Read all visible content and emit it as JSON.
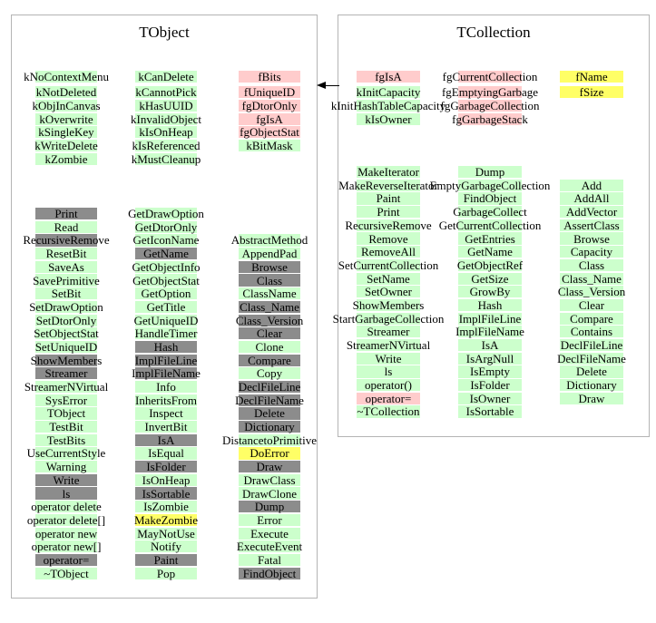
{
  "colors": {
    "method_public": "#ccffcc",
    "data_member": "#ffcccc",
    "overridden": "#8c8c8c",
    "highlight": "#ffff66",
    "box_border": "#b4b4b4",
    "arrow": "#000000"
  },
  "icons": {
    "inheritance_arrow": "left-pointing-filled-triangle"
  },
  "classes": [
    {
      "name": "TObject",
      "top_columns": [
        {
          "items": [
            {
              "label": "kNoContextMenu",
              "type": "green"
            },
            {
              "label": "kNotDeleted",
              "type": "green"
            },
            {
              "label": "kObjInCanvas",
              "type": "green"
            },
            {
              "label": "kOverwrite",
              "type": "green"
            },
            {
              "label": "kSingleKey",
              "type": "green"
            },
            {
              "label": "kWriteDelete",
              "type": "green"
            },
            {
              "label": "kZombie",
              "type": "green"
            }
          ]
        },
        {
          "items": [
            {
              "label": "kCanDelete",
              "type": "green"
            },
            {
              "label": "kCannotPick",
              "type": "green"
            },
            {
              "label": "kHasUUID",
              "type": "green"
            },
            {
              "label": "kInvalidObject",
              "type": "green"
            },
            {
              "label": "kIsOnHeap",
              "type": "green"
            },
            {
              "label": "kIsReferenced",
              "type": "green"
            },
            {
              "label": "kMustCleanup",
              "type": "green"
            }
          ]
        },
        {
          "items": [
            {
              "label": "fBits",
              "type": "pink"
            },
            {
              "label": "fUniqueID",
              "type": "pink"
            },
            {
              "label": "fgDtorOnly",
              "type": "pink"
            },
            {
              "label": "fgIsA",
              "type": "pink"
            },
            {
              "label": "fgObjectStat",
              "type": "pink"
            },
            {
              "label": "kBitMask",
              "type": "green"
            }
          ]
        }
      ],
      "method_columns": [
        {
          "items": [
            {
              "label": "Print",
              "type": "gray"
            },
            {
              "label": "Read",
              "type": "green"
            },
            {
              "label": "RecursiveRemove",
              "type": "gray"
            },
            {
              "label": "ResetBit",
              "type": "green"
            },
            {
              "label": "SaveAs",
              "type": "green"
            },
            {
              "label": "SavePrimitive",
              "type": "green"
            },
            {
              "label": "SetBit",
              "type": "green"
            },
            {
              "label": "SetDrawOption",
              "type": "green"
            },
            {
              "label": "SetDtorOnly",
              "type": "green"
            },
            {
              "label": "SetObjectStat",
              "type": "green"
            },
            {
              "label": "SetUniqueID",
              "type": "green"
            },
            {
              "label": "ShowMembers",
              "type": "gray"
            },
            {
              "label": "Streamer",
              "type": "gray"
            },
            {
              "label": "StreamerNVirtual",
              "type": "green"
            },
            {
              "label": "SysError",
              "type": "green"
            },
            {
              "label": "TObject",
              "type": "green"
            },
            {
              "label": "TestBit",
              "type": "green"
            },
            {
              "label": "TestBits",
              "type": "green"
            },
            {
              "label": "UseCurrentStyle",
              "type": "green"
            },
            {
              "label": "Warning",
              "type": "green"
            },
            {
              "label": "Write",
              "type": "gray"
            },
            {
              "label": "ls",
              "type": "gray"
            },
            {
              "label": "operator delete",
              "type": "green"
            },
            {
              "label": "operator delete[]",
              "type": "green"
            },
            {
              "label": "operator new",
              "type": "green"
            },
            {
              "label": "operator new[]",
              "type": "green"
            },
            {
              "label": "operator=",
              "type": "gray"
            },
            {
              "label": "~TObject",
              "type": "green"
            }
          ]
        },
        {
          "items": [
            {
              "label": "GetDrawOption",
              "type": "green"
            },
            {
              "label": "GetDtorOnly",
              "type": "green"
            },
            {
              "label": "GetIconName",
              "type": "green"
            },
            {
              "label": "GetName",
              "type": "gray"
            },
            {
              "label": "GetObjectInfo",
              "type": "green"
            },
            {
              "label": "GetObjectStat",
              "type": "green"
            },
            {
              "label": "GetOption",
              "type": "green"
            },
            {
              "label": "GetTitle",
              "type": "green"
            },
            {
              "label": "GetUniqueID",
              "type": "green"
            },
            {
              "label": "HandleTimer",
              "type": "green"
            },
            {
              "label": "Hash",
              "type": "gray"
            },
            {
              "label": "ImplFileLine",
              "type": "gray"
            },
            {
              "label": "ImplFileName",
              "type": "gray"
            },
            {
              "label": "Info",
              "type": "green"
            },
            {
              "label": "InheritsFrom",
              "type": "green"
            },
            {
              "label": "Inspect",
              "type": "green"
            },
            {
              "label": "InvertBit",
              "type": "green"
            },
            {
              "label": "IsA",
              "type": "gray"
            },
            {
              "label": "IsEqual",
              "type": "green"
            },
            {
              "label": "IsFolder",
              "type": "gray"
            },
            {
              "label": "IsOnHeap",
              "type": "green"
            },
            {
              "label": "IsSortable",
              "type": "gray"
            },
            {
              "label": "IsZombie",
              "type": "green"
            },
            {
              "label": "MakeZombie",
              "type": "yellow"
            },
            {
              "label": "MayNotUse",
              "type": "green"
            },
            {
              "label": "Notify",
              "type": "green"
            },
            {
              "label": "Paint",
              "type": "gray"
            },
            {
              "label": "Pop",
              "type": "green"
            }
          ]
        },
        {
          "items": [
            {
              "label": "AbstractMethod",
              "type": "green"
            },
            {
              "label": "AppendPad",
              "type": "green"
            },
            {
              "label": "Browse",
              "type": "gray"
            },
            {
              "label": "Class",
              "type": "gray"
            },
            {
              "label": "ClassName",
              "type": "green"
            },
            {
              "label": "Class_Name",
              "type": "gray"
            },
            {
              "label": "Class_Version",
              "type": "gray"
            },
            {
              "label": "Clear",
              "type": "gray"
            },
            {
              "label": "Clone",
              "type": "green"
            },
            {
              "label": "Compare",
              "type": "gray"
            },
            {
              "label": "Copy",
              "type": "green"
            },
            {
              "label": "DeclFileLine",
              "type": "gray"
            },
            {
              "label": "DeclFileName",
              "type": "gray"
            },
            {
              "label": "Delete",
              "type": "gray"
            },
            {
              "label": "Dictionary",
              "type": "gray"
            },
            {
              "label": "DistancetoPrimitive",
              "type": "green"
            },
            {
              "label": "DoError",
              "type": "yellow"
            },
            {
              "label": "Draw",
              "type": "gray"
            },
            {
              "label": "DrawClass",
              "type": "green"
            },
            {
              "label": "DrawClone",
              "type": "green"
            },
            {
              "label": "Dump",
              "type": "gray"
            },
            {
              "label": "Error",
              "type": "green"
            },
            {
              "label": "Execute",
              "type": "green"
            },
            {
              "label": "ExecuteEvent",
              "type": "green"
            },
            {
              "label": "Fatal",
              "type": "green"
            },
            {
              "label": "FindObject",
              "type": "gray"
            }
          ]
        }
      ]
    },
    {
      "name": "TCollection",
      "top_columns": [
        {
          "items": [
            {
              "label": "fgIsA",
              "type": "pink"
            },
            {
              "label": "kInitCapacity",
              "type": "green"
            },
            {
              "label": "kInitHashTableCapacity",
              "type": "green"
            },
            {
              "label": "kIsOwner",
              "type": "green"
            }
          ]
        },
        {
          "items": [
            {
              "label": "fgCurrentCollection",
              "type": "pink"
            },
            {
              "label": "fgEmptyingGarbage",
              "type": "pink"
            },
            {
              "label": "fgGarbageCollection",
              "type": "pink"
            },
            {
              "label": "fgGarbageStack",
              "type": "pink"
            }
          ]
        },
        {
          "items": [
            {
              "label": "fName",
              "type": "yellow"
            },
            {
              "label": "fSize",
              "type": "yellow"
            }
          ]
        }
      ],
      "method_columns": [
        {
          "items": [
            {
              "label": "MakeIterator",
              "type": "green"
            },
            {
              "label": "MakeReverseIterator",
              "type": "green"
            },
            {
              "label": "Paint",
              "type": "green"
            },
            {
              "label": "Print",
              "type": "green"
            },
            {
              "label": "RecursiveRemove",
              "type": "green"
            },
            {
              "label": "Remove",
              "type": "green"
            },
            {
              "label": "RemoveAll",
              "type": "green"
            },
            {
              "label": "SetCurrentCollection",
              "type": "green"
            },
            {
              "label": "SetName",
              "type": "green"
            },
            {
              "label": "SetOwner",
              "type": "green"
            },
            {
              "label": "ShowMembers",
              "type": "green"
            },
            {
              "label": "StartGarbageCollection",
              "type": "green"
            },
            {
              "label": "Streamer",
              "type": "green"
            },
            {
              "label": "StreamerNVirtual",
              "type": "green"
            },
            {
              "label": "Write",
              "type": "green"
            },
            {
              "label": "ls",
              "type": "green"
            },
            {
              "label": "operator()",
              "type": "green"
            },
            {
              "label": "operator=",
              "type": "pink"
            },
            {
              "label": "~TCollection",
              "type": "green"
            }
          ]
        },
        {
          "items": [
            {
              "label": "Dump",
              "type": "green"
            },
            {
              "label": "EmptyGarbageCollection",
              "type": "green"
            },
            {
              "label": "FindObject",
              "type": "green"
            },
            {
              "label": "GarbageCollect",
              "type": "green"
            },
            {
              "label": "GetCurrentCollection",
              "type": "green"
            },
            {
              "label": "GetEntries",
              "type": "green"
            },
            {
              "label": "GetName",
              "type": "green"
            },
            {
              "label": "GetObjectRef",
              "type": "green"
            },
            {
              "label": "GetSize",
              "type": "green"
            },
            {
              "label": "GrowBy",
              "type": "green"
            },
            {
              "label": "Hash",
              "type": "green"
            },
            {
              "label": "ImplFileLine",
              "type": "green"
            },
            {
              "label": "ImplFileName",
              "type": "green"
            },
            {
              "label": "IsA",
              "type": "green"
            },
            {
              "label": "IsArgNull",
              "type": "green"
            },
            {
              "label": "IsEmpty",
              "type": "green"
            },
            {
              "label": "IsFolder",
              "type": "green"
            },
            {
              "label": "IsOwner",
              "type": "green"
            },
            {
              "label": "IsSortable",
              "type": "green"
            }
          ]
        },
        {
          "items": [
            {
              "label": "Add",
              "type": "green"
            },
            {
              "label": "AddAll",
              "type": "green"
            },
            {
              "label": "AddVector",
              "type": "green"
            },
            {
              "label": "AssertClass",
              "type": "green"
            },
            {
              "label": "Browse",
              "type": "green"
            },
            {
              "label": "Capacity",
              "type": "green"
            },
            {
              "label": "Class",
              "type": "green"
            },
            {
              "label": "Class_Name",
              "type": "green"
            },
            {
              "label": "Class_Version",
              "type": "green"
            },
            {
              "label": "Clear",
              "type": "green"
            },
            {
              "label": "Compare",
              "type": "green"
            },
            {
              "label": "Contains",
              "type": "green"
            },
            {
              "label": "DeclFileLine",
              "type": "green"
            },
            {
              "label": "DeclFileName",
              "type": "green"
            },
            {
              "label": "Delete",
              "type": "green"
            },
            {
              "label": "Dictionary",
              "type": "green"
            },
            {
              "label": "Draw",
              "type": "green"
            }
          ]
        }
      ]
    }
  ]
}
